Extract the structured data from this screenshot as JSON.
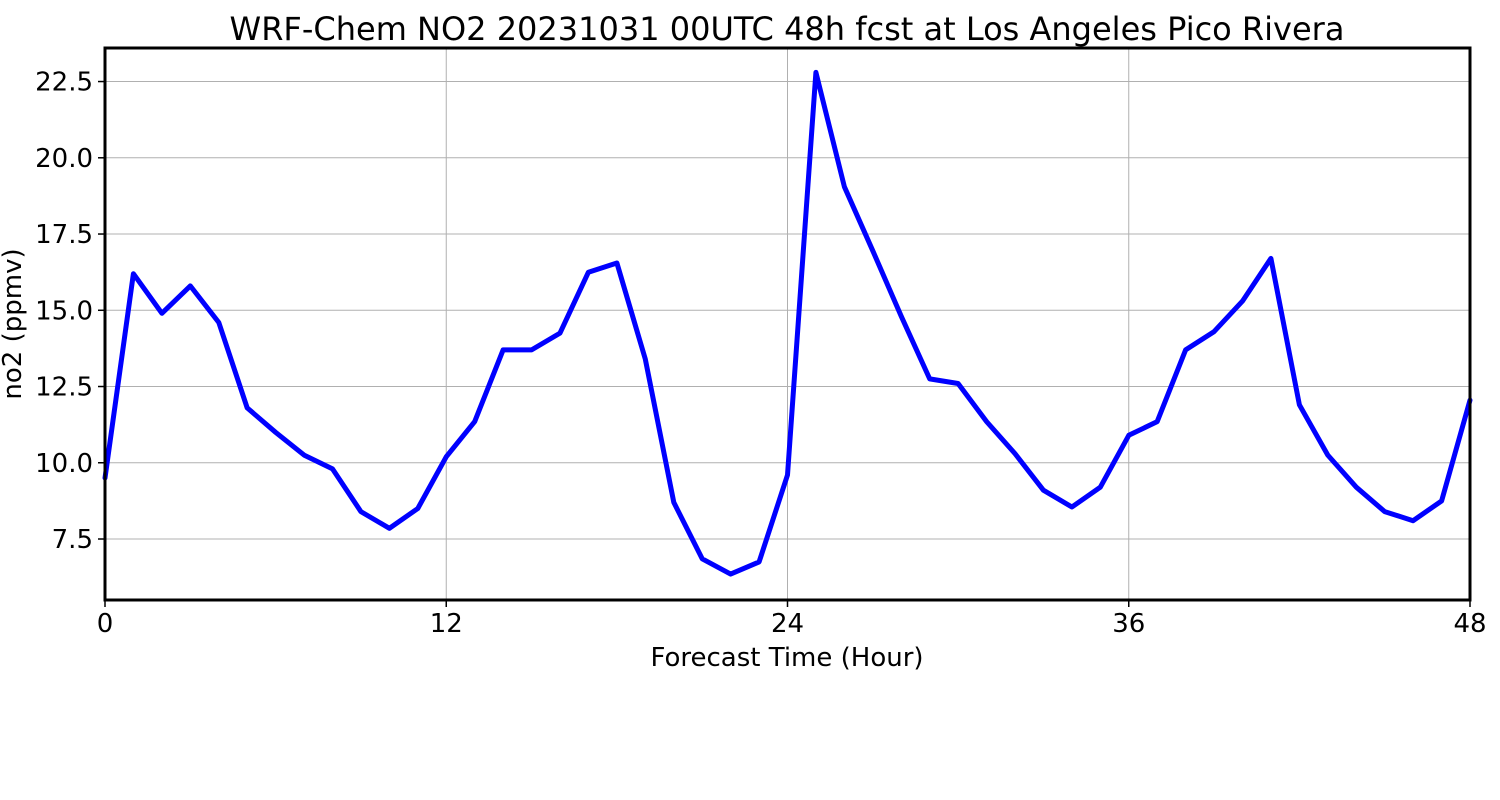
{
  "chart_data": {
    "type": "line",
    "title": "WRF-Chem NO2  20231031 00UTC 48h fcst at Los Angeles Pico Rivera",
    "xlabel": "Forecast Time (Hour)",
    "ylabel": "no2  (ppmv)",
    "xlim": [
      0,
      48
    ],
    "ylim": [
      5.5,
      23.6
    ],
    "xticks": [
      0,
      12,
      24,
      36,
      48
    ],
    "xtick_labels": [
      "0",
      "12",
      "24",
      "36",
      "48"
    ],
    "yticks": [
      7.5,
      10.0,
      12.5,
      15.0,
      17.5,
      20.0,
      22.5
    ],
    "ytick_labels": [
      "7.5",
      "10.0",
      "12.5",
      "15.0",
      "17.5",
      "20.0",
      "22.5"
    ],
    "grid": true,
    "color": "#0000ff",
    "x": [
      0,
      1,
      2,
      3,
      4,
      5,
      6,
      7,
      8,
      9,
      10,
      11,
      12,
      13,
      14,
      15,
      16,
      17,
      18,
      19,
      20,
      21,
      22,
      23,
      24,
      25,
      26,
      27,
      28,
      29,
      30,
      31,
      32,
      33,
      34,
      35,
      36,
      37,
      38,
      39,
      40,
      41,
      42,
      43,
      44,
      45,
      46,
      47,
      48
    ],
    "values": [
      9.5,
      16.2,
      14.9,
      15.8,
      14.6,
      11.8,
      11.0,
      10.25,
      9.8,
      8.4,
      7.85,
      8.5,
      10.2,
      11.35,
      13.7,
      13.7,
      14.25,
      16.25,
      16.55,
      13.4,
      8.7,
      6.85,
      6.35,
      6.75,
      9.6,
      22.8,
      19.05,
      16.95,
      14.8,
      12.75,
      12.6,
      11.35,
      10.3,
      9.1,
      8.55,
      9.2,
      10.9,
      11.35,
      13.7,
      14.3,
      15.3,
      16.7,
      11.9,
      10.25,
      9.2,
      8.4,
      8.1,
      8.75,
      12.05
    ]
  }
}
